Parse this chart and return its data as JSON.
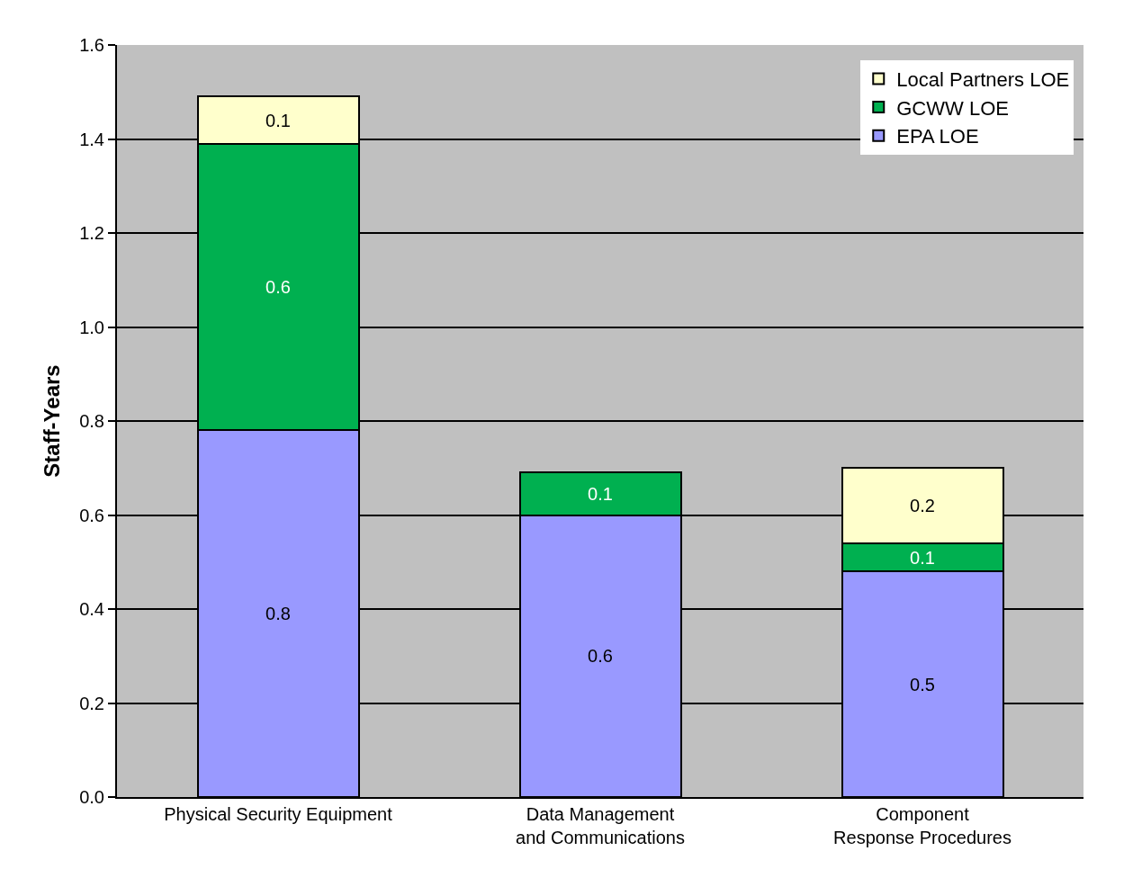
{
  "chart_data": {
    "type": "bar",
    "stacked": true,
    "ylabel": "Staff-Years",
    "categories": [
      "Physical Security Equipment",
      "Data Management and Communications",
      "Component Response Procedures"
    ],
    "series": [
      {
        "name": "EPA LOE",
        "color": "#9999ff",
        "values": [
          0.78,
          0.6,
          0.48
        ],
        "value_labels": [
          "0.8",
          "0.6",
          "0.5"
        ]
      },
      {
        "name": "GCWW LOE",
        "color": "#00b050",
        "values": [
          0.61,
          0.09,
          0.06
        ],
        "value_labels": [
          "0.6",
          "0.1",
          "0.1"
        ]
      },
      {
        "name": "Local Partners LOE",
        "color": "#ffffcc",
        "values": [
          0.1,
          null,
          0.16
        ],
        "value_labels": [
          "0.1",
          null,
          "0.2"
        ]
      }
    ],
    "ylim": [
      0,
      1.6
    ],
    "yticks": [
      {
        "value": 0,
        "label": "0.0"
      },
      {
        "value": 0.2,
        "label": "0.2"
      },
      {
        "value": 0.4,
        "label": "0.4"
      },
      {
        "value": 0.6,
        "label": "0.6"
      },
      {
        "value": 0.8,
        "label": "0.8"
      },
      {
        "value": 1.0,
        "label": "1.0"
      },
      {
        "value": 1.2,
        "label": "1.2"
      },
      {
        "value": 1.4,
        "label": "1.4"
      },
      {
        "value": 1.6,
        "label": "1.6"
      }
    ],
    "grid": "y",
    "legend": "top right"
  }
}
